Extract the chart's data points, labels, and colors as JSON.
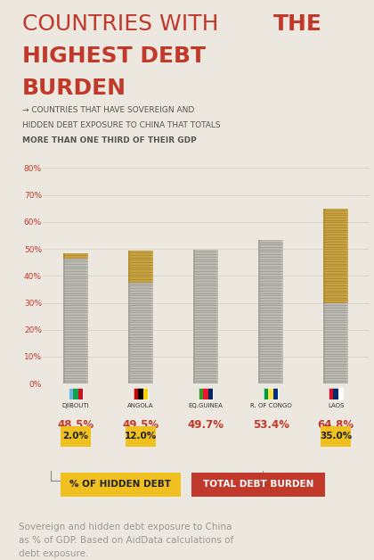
{
  "bg_color": "#ede8df",
  "title_color": "#c0392b",
  "subtitle_color": "#555555",
  "countries": [
    "DJIBOUTI",
    "ANGOLA",
    "EQ.GUINEA",
    "R. OF CONGO",
    "LAOS"
  ],
  "total_debt": [
    48.5,
    49.5,
    49.7,
    53.4,
    64.8
  ],
  "hidden_debt": [
    2.0,
    12.0,
    0.0,
    0.0,
    35.0
  ],
  "hidden_debt_labels": [
    "2.0%",
    "12.0%",
    "",
    "",
    "35.0%"
  ],
  "total_debt_labels": [
    "48.5%",
    "49.5%",
    "49.7%",
    "53.4%",
    "64.8%"
  ],
  "bar_color_silver_light": "#d0cfc8",
  "bar_color_silver_mid": "#b8b7b0",
  "bar_color_silver_dark": "#909088",
  "bar_color_gold_light": "#d4b86a",
  "bar_color_gold_mid": "#c4a040",
  "bar_color_gold_dark": "#a88020",
  "hidden_debt_bg": "#f0c020",
  "total_debt_bg": "#c0392b",
  "axis_color": "#c0392b",
  "grid_color": "#d8d3ca",
  "legend_hidden_text": "% OF HIDDEN DEBT",
  "legend_total_text": "TOTAL DEBT BURDEN",
  "legend_hidden_bg": "#f0c020",
  "legend_total_bg": "#c0392b",
  "footer_text": "Sovereign and hidden debt exposure to China\nas % of GDP. Based on AidData calculations of\ndebt exposure.",
  "ylim": [
    0,
    80
  ],
  "yticks": [
    0,
    10,
    20,
    30,
    40,
    50,
    60,
    70,
    80
  ]
}
